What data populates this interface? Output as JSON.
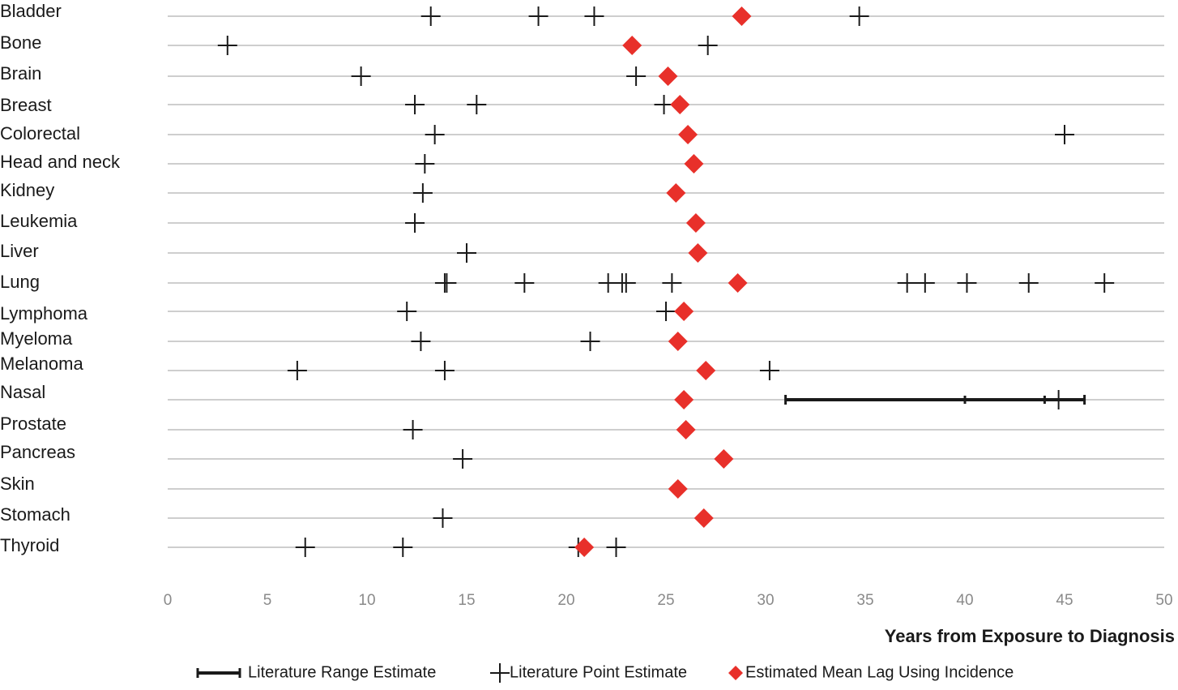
{
  "chart_data": {
    "type": "scatter",
    "xlabel": "Years from Exposure to Diagnosis",
    "xlim": [
      0,
      50
    ],
    "xticks": [
      "0",
      "5",
      "10",
      "15",
      "20",
      "25",
      "30",
      "35",
      "40",
      "45",
      "50"
    ],
    "grid": true,
    "legend_position": "bottom",
    "categories": [
      "Bladder",
      "Bone",
      "Brain",
      "Breast",
      "Colorectal",
      "Head and neck",
      "Kidney",
      "Leukemia",
      "Liver",
      "Lung",
      "Lymphoma",
      "Myeloma",
      "Melanoma",
      "Nasal",
      "Prostate",
      "Pancreas",
      "Skin",
      "Stomach",
      "Thyroid"
    ],
    "series": [
      {
        "name": "Literature Range Estimate",
        "color": "#1a1a1a",
        "ranges": [
          {
            "category": "Nasal",
            "low": 31,
            "high": 46,
            "inner_ticks": [
              40,
              44
            ]
          }
        ]
      },
      {
        "name": "Literature Point Estimate",
        "color": "#1a1a1a",
        "points": [
          {
            "category": "Bladder",
            "values": [
              13.2,
              18.6,
              21.4,
              34.7
            ]
          },
          {
            "category": "Bone",
            "values": [
              3.0,
              27.1
            ]
          },
          {
            "category": "Brain",
            "values": [
              9.7,
              23.5
            ]
          },
          {
            "category": "Breast",
            "values": [
              12.4,
              15.5,
              24.9
            ]
          },
          {
            "category": "Colorectal",
            "values": [
              13.4,
              45.0
            ]
          },
          {
            "category": "Head and neck",
            "values": [
              12.9
            ]
          },
          {
            "category": "Kidney",
            "values": [
              12.8
            ]
          },
          {
            "category": "Leukemia",
            "values": [
              12.4
            ]
          },
          {
            "category": "Liver",
            "values": [
              15.0
            ]
          },
          {
            "category": "Lung",
            "values": [
              13.9,
              14.0,
              17.9,
              22.1,
              22.8,
              23.0,
              25.3,
              37.1,
              38.0,
              40.1,
              43.2,
              47.0
            ]
          },
          {
            "category": "Lymphoma",
            "values": [
              12.0,
              25.0
            ]
          },
          {
            "category": "Myeloma",
            "values": [
              12.7,
              21.2
            ]
          },
          {
            "category": "Melanoma",
            "values": [
              6.5,
              13.9,
              30.2
            ]
          },
          {
            "category": "Nasal",
            "values": [
              44.7
            ]
          },
          {
            "category": "Prostate",
            "values": [
              12.3
            ]
          },
          {
            "category": "Pancreas",
            "values": [
              14.8
            ]
          },
          {
            "category": "Skin",
            "values": []
          },
          {
            "category": "Stomach",
            "values": [
              13.8
            ]
          },
          {
            "category": "Thyroid",
            "values": [
              6.9,
              11.8,
              20.6,
              22.5
            ]
          }
        ]
      },
      {
        "name": "Estimated Mean Lag Using Incidence",
        "color": "#e8302a",
        "points": [
          {
            "category": "Bladder",
            "value": 28.8
          },
          {
            "category": "Bone",
            "value": 23.3
          },
          {
            "category": "Brain",
            "value": 25.1
          },
          {
            "category": "Breast",
            "value": 25.7
          },
          {
            "category": "Colorectal",
            "value": 26.1
          },
          {
            "category": "Head and neck",
            "value": 26.4
          },
          {
            "category": "Kidney",
            "value": 25.5
          },
          {
            "category": "Leukemia",
            "value": 26.5
          },
          {
            "category": "Liver",
            "value": 26.6
          },
          {
            "category": "Lung",
            "value": 28.6
          },
          {
            "category": "Lymphoma",
            "value": 25.9
          },
          {
            "category": "Myeloma",
            "value": 25.6
          },
          {
            "category": "Melanoma",
            "value": 27.0
          },
          {
            "category": "Nasal",
            "value": 25.9
          },
          {
            "category": "Prostate",
            "value": 26.0
          },
          {
            "category": "Pancreas",
            "value": 27.9
          },
          {
            "category": "Skin",
            "value": 25.6
          },
          {
            "category": "Stomach",
            "value": 26.9
          },
          {
            "category": "Thyroid",
            "value": 20.9
          }
        ]
      }
    ]
  }
}
